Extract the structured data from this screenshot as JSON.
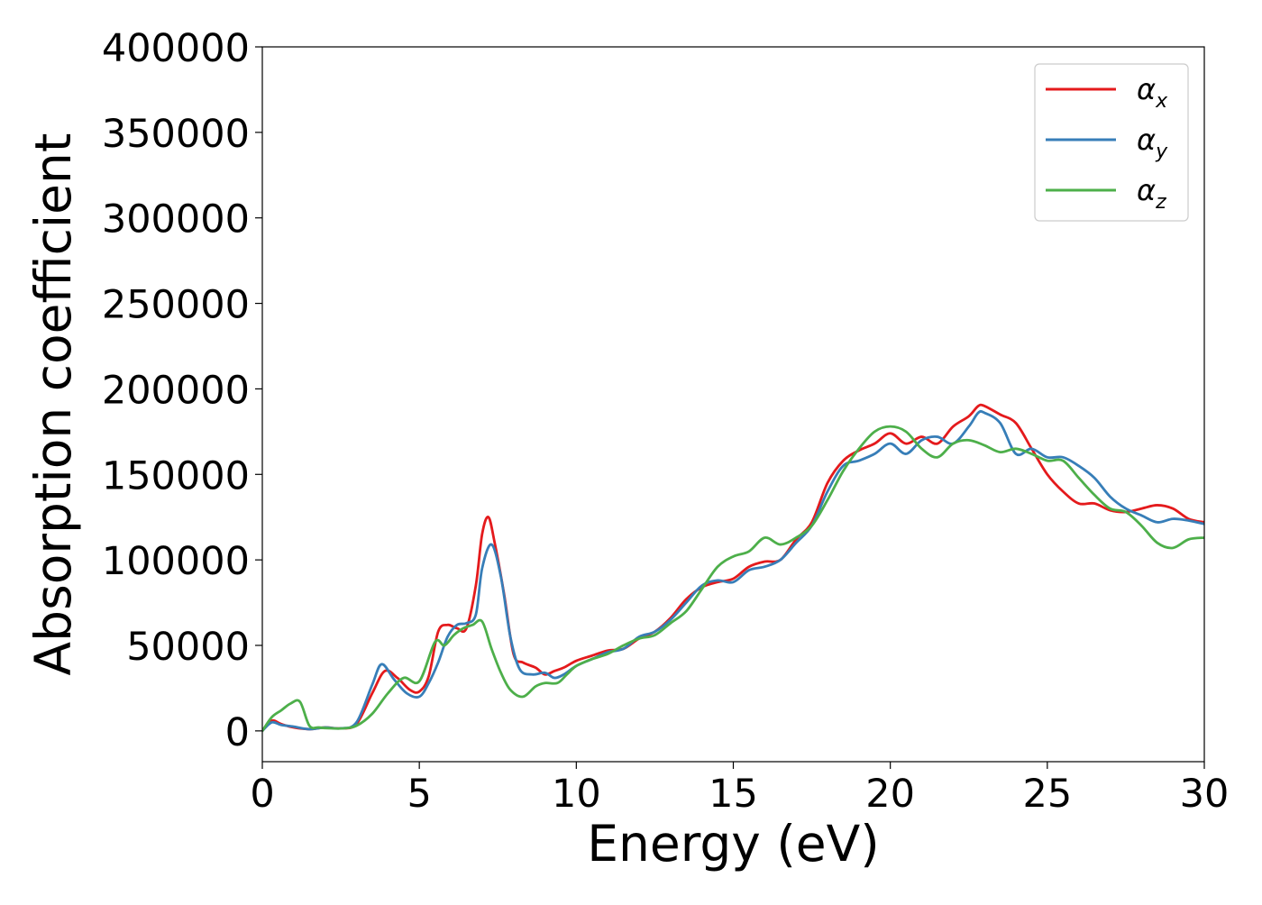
{
  "chart_data": {
    "type": "line",
    "title": "",
    "xlabel": "Energy (eV)",
    "ylabel": "Absorption coefficient",
    "xlim": [
      0,
      30
    ],
    "ylim": [
      -18000,
      400000
    ],
    "xticks": [
      0,
      5,
      10,
      15,
      20,
      25,
      30
    ],
    "yticks": [
      0,
      50000,
      100000,
      150000,
      200000,
      250000,
      300000,
      350000,
      400000
    ],
    "xtick_labels": [
      "0",
      "5",
      "10",
      "15",
      "20",
      "25",
      "30"
    ],
    "ytick_labels": [
      "0",
      "50000",
      "100000",
      "150000",
      "200000",
      "250000",
      "300000",
      "350000",
      "400000"
    ],
    "grid": false,
    "legend_position": "top-right",
    "series": [
      {
        "name": "α_x",
        "label_main": "α",
        "label_sub": "x",
        "color": "#e41a1c",
        "x": [
          0,
          0.3,
          0.6,
          1.0,
          1.5,
          2.0,
          2.5,
          3.0,
          3.5,
          3.9,
          4.3,
          4.7,
          5.0,
          5.3,
          5.6,
          5.9,
          6.2,
          6.5,
          6.8,
          7.0,
          7.2,
          7.4,
          7.7,
          8.0,
          8.3,
          8.7,
          9.0,
          9.3,
          9.6,
          10.0,
          10.5,
          11.0,
          11.5,
          12.0,
          12.5,
          13.0,
          13.5,
          14.0,
          14.5,
          15.0,
          15.5,
          16.0,
          16.5,
          17.0,
          17.5,
          18.0,
          18.5,
          19.0,
          19.5,
          20.0,
          20.5,
          21.0,
          21.5,
          22.0,
          22.5,
          22.8,
          23.0,
          23.5,
          24.0,
          24.5,
          25.0,
          25.5,
          26.0,
          26.5,
          27.0,
          27.5,
          28.0,
          28.5,
          29.0,
          29.5,
          30.0
        ],
        "y": [
          0,
          6000,
          4000,
          2000,
          1000,
          2000,
          1500,
          4000,
          22000,
          35000,
          31000,
          24000,
          23000,
          32000,
          58000,
          62000,
          60000,
          60000,
          85000,
          115000,
          125000,
          110000,
          80000,
          45000,
          40000,
          37000,
          33000,
          35000,
          37000,
          41000,
          44000,
          47000,
          48000,
          54000,
          58000,
          66000,
          77000,
          84000,
          87000,
          89000,
          96000,
          99000,
          100000,
          112000,
          122000,
          145000,
          158000,
          164000,
          168000,
          174000,
          168000,
          172000,
          168000,
          178000,
          184000,
          190000,
          190000,
          185000,
          180000,
          165000,
          150000,
          140000,
          133000,
          133000,
          129000,
          128000,
          130000,
          132000,
          130000,
          124000,
          122000
        ]
      },
      {
        "name": "α_y",
        "label_main": "α",
        "label_sub": "y",
        "color": "#377eb8",
        "x": [
          0,
          0.3,
          0.6,
          1.0,
          1.5,
          2.0,
          2.5,
          3.0,
          3.5,
          3.8,
          4.2,
          4.6,
          5.0,
          5.3,
          5.6,
          5.9,
          6.2,
          6.5,
          6.8,
          7.0,
          7.3,
          7.6,
          7.9,
          8.2,
          8.6,
          9.0,
          9.3,
          9.6,
          10.0,
          10.5,
          11.0,
          11.5,
          12.0,
          12.5,
          13.0,
          13.5,
          14.0,
          14.5,
          15.0,
          15.5,
          16.0,
          16.5,
          17.0,
          17.5,
          18.0,
          18.5,
          19.0,
          19.5,
          20.0,
          20.5,
          21.0,
          21.5,
          22.0,
          22.5,
          22.8,
          23.0,
          23.5,
          24.0,
          24.5,
          25.0,
          25.5,
          26.0,
          26.5,
          27.0,
          27.5,
          28.0,
          28.5,
          29.0,
          29.5,
          30.0
        ],
        "y": [
          0,
          5000,
          3500,
          2500,
          1000,
          2000,
          1500,
          5000,
          27000,
          39000,
          30000,
          22000,
          20000,
          28000,
          40000,
          55000,
          62000,
          63000,
          68000,
          95000,
          109000,
          90000,
          55000,
          36000,
          33000,
          34000,
          31000,
          33000,
          38000,
          42000,
          46000,
          48000,
          55000,
          58000,
          65000,
          75000,
          85000,
          88000,
          87000,
          94000,
          96000,
          100000,
          110000,
          120000,
          140000,
          155000,
          158000,
          162000,
          168000,
          162000,
          170000,
          172000,
          168000,
          178000,
          186000,
          186000,
          180000,
          162000,
          165000,
          160000,
          160000,
          155000,
          148000,
          137000,
          130000,
          126000,
          122000,
          124000,
          123000,
          121000
        ]
      },
      {
        "name": "α_z",
        "label_main": "α",
        "label_sub": "z",
        "color": "#4daf4a",
        "x": [
          0,
          0.3,
          0.6,
          0.9,
          1.2,
          1.5,
          1.8,
          2.2,
          2.6,
          3.0,
          3.5,
          4.0,
          4.5,
          5.0,
          5.5,
          5.8,
          6.1,
          6.4,
          6.7,
          7.0,
          7.3,
          7.6,
          7.9,
          8.3,
          8.7,
          9.0,
          9.4,
          9.7,
          10.0,
          10.5,
          11.0,
          11.5,
          12.0,
          12.5,
          13.0,
          13.5,
          14.0,
          14.5,
          15.0,
          15.5,
          16.0,
          16.5,
          17.0,
          17.5,
          18.0,
          18.5,
          19.0,
          19.5,
          20.0,
          20.5,
          21.0,
          21.5,
          22.0,
          22.5,
          23.0,
          23.5,
          24.0,
          24.5,
          25.0,
          25.5,
          26.0,
          26.5,
          27.0,
          27.5,
          28.0,
          28.5,
          29.0,
          29.5,
          30.0
        ],
        "y": [
          0,
          8000,
          12000,
          16000,
          17000,
          3000,
          2000,
          1500,
          1500,
          3000,
          10000,
          22000,
          31000,
          29000,
          52000,
          50000,
          56000,
          60000,
          62000,
          64000,
          48000,
          34000,
          24000,
          20000,
          26000,
          28000,
          28000,
          33000,
          38000,
          42000,
          45000,
          50000,
          54000,
          56000,
          63000,
          70000,
          83000,
          96000,
          102000,
          105000,
          113000,
          109000,
          113000,
          120000,
          135000,
          152000,
          165000,
          175000,
          178000,
          175000,
          165000,
          160000,
          168000,
          170000,
          167000,
          163000,
          165000,
          162000,
          158000,
          158000,
          148000,
          138000,
          130000,
          128000,
          120000,
          110000,
          107000,
          112000,
          113000
        ]
      }
    ]
  }
}
